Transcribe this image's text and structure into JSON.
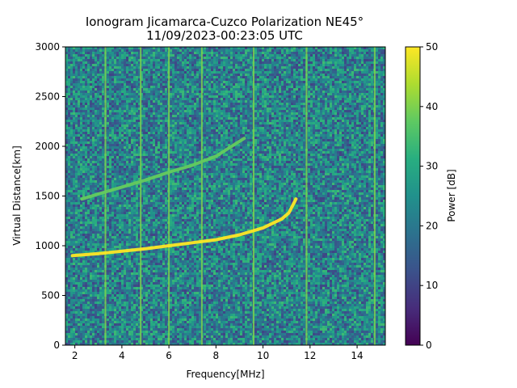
{
  "chart_data": {
    "type": "heatmap",
    "title": "Ionogram Jicamarca-Cuzco Polarization NE45°",
    "subtitle": "11/09/2023-00:23:05 UTC",
    "xlabel": "Frequency[MHz]",
    "ylabel": "Virtual Distance[km]",
    "xlim": [
      1.6,
      15.2
    ],
    "ylim": [
      0,
      3000
    ],
    "x_ticks": [
      2,
      4,
      6,
      8,
      10,
      12,
      14
    ],
    "y_ticks": [
      0,
      500,
      1000,
      1500,
      2000,
      2500,
      3000
    ],
    "colorbar": {
      "label": "Power [dB]",
      "range": [
        0,
        50
      ],
      "ticks": [
        0,
        10,
        20,
        30,
        40,
        50
      ],
      "colormap": "viridis"
    },
    "grid": false,
    "background_level_db": 22,
    "vertical_interference_lines_mhz": [
      3.3,
      4.8,
      6.0,
      7.4,
      9.6,
      11.85,
      14.75
    ],
    "traces": [
      {
        "points": [
          [
            1.9,
            900
          ],
          [
            3,
            920
          ],
          [
            4,
            945
          ],
          [
            5,
            970
          ],
          [
            6,
            1000
          ],
          [
            7,
            1030
          ],
          [
            8,
            1060
          ],
          [
            9,
            1110
          ],
          [
            10,
            1180
          ],
          [
            10.8,
            1270
          ],
          [
            11.1,
            1330
          ],
          [
            11.4,
            1470
          ]
        ],
        "level_db": 50
      },
      {
        "points": [
          [
            2.3,
            1470
          ],
          [
            3,
            1520
          ],
          [
            4,
            1590
          ],
          [
            5,
            1660
          ],
          [
            6,
            1740
          ],
          [
            7,
            1810
          ],
          [
            8,
            1900
          ],
          [
            8.8,
            2020
          ],
          [
            9.2,
            2080
          ]
        ],
        "level_db": 38
      }
    ]
  }
}
